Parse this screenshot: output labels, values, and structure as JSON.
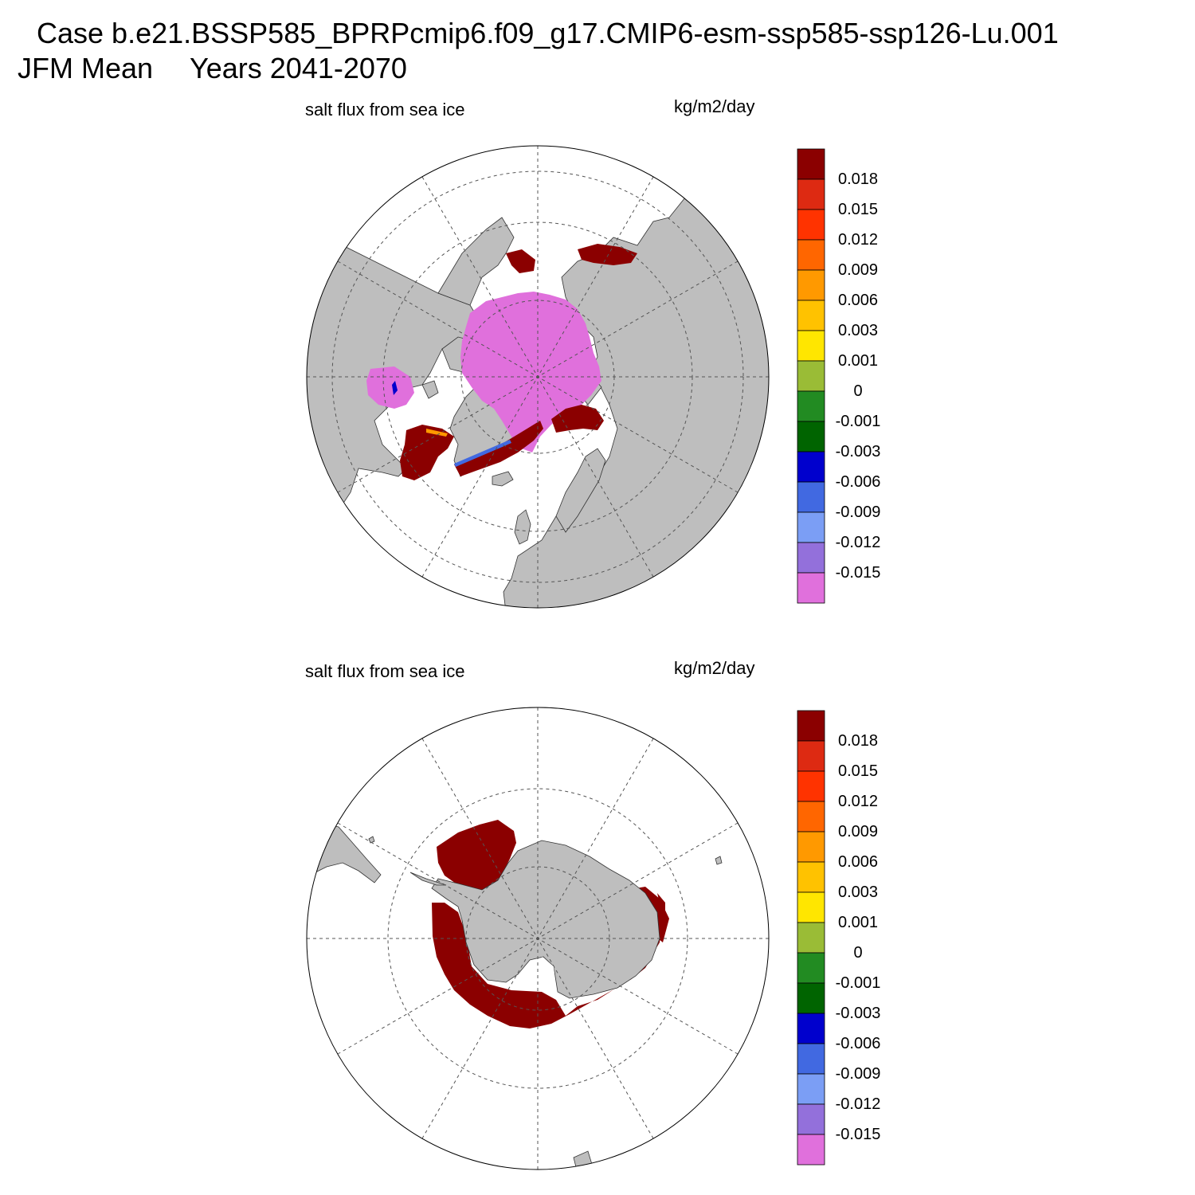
{
  "header": {
    "case_line": "Case b.e21.BSSP585_BPRPcmip6.f09_g17.CMIP6-esm-ssp585-ssp126-Lu.001",
    "season": "JFM Mean",
    "years": "Years 2041-2070"
  },
  "colors": {
    "land": "#bebebe",
    "ocean": "#ffffff",
    "grid": "#555555",
    "strong_positive": "#8b0000",
    "strong_negative": "#e070dc"
  },
  "colorbar": {
    "colors": [
      "#8b0000",
      "#dd2a12",
      "#ff3300",
      "#ff6600",
      "#ff9900",
      "#ffc200",
      "#ffe600",
      "#9abc36",
      "#228b22",
      "#006400",
      "#0000cd",
      "#4169e1",
      "#7b9ef5",
      "#9370db",
      "#e070dc"
    ],
    "labels": [
      "0.018",
      "0.015",
      "0.012",
      "0.009",
      "0.006",
      "0.003",
      "0.001",
      "0",
      "-0.001",
      "-0.003",
      "-0.006",
      "-0.009",
      "-0.012",
      "-0.015"
    ]
  },
  "panels": [
    {
      "id": "north",
      "hemisphere": "Northern Hemisphere polar stereographic",
      "variable_label": "salt flux from sea ice",
      "units_label": "kg/m2/day",
      "regions": [
        {
          "name": "arctic-basin",
          "value": "< -0.015",
          "color": "#e070dc"
        },
        {
          "name": "hudson-bay",
          "value": "< -0.015",
          "color": "#e070dc"
        },
        {
          "name": "labrador-sea",
          "value": "> 0.018",
          "color": "#8b0000"
        },
        {
          "name": "greenland-east-coast",
          "value": "> 0.018",
          "color": "#8b0000"
        },
        {
          "name": "barents-sea",
          "value": "> 0.018",
          "color": "#8b0000"
        },
        {
          "name": "bering-sea",
          "value": "> 0.018",
          "color": "#8b0000"
        },
        {
          "name": "sea-of-okhotsk",
          "value": "> 0.018",
          "color": "#8b0000"
        }
      ]
    },
    {
      "id": "south",
      "hemisphere": "Southern Hemisphere polar stereographic",
      "variable_label": "salt flux from sea ice",
      "units_label": "kg/m2/day",
      "regions": [
        {
          "name": "weddell-sea",
          "value": "> 0.018",
          "color": "#8b0000"
        },
        {
          "name": "antarctic-sea-ice-ring",
          "value": "> 0.018",
          "color": "#8b0000"
        }
      ]
    }
  ]
}
